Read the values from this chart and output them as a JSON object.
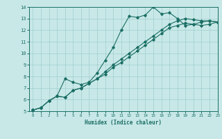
{
  "xlabel": "Humidex (Indice chaleur)",
  "ylabel": "",
  "bg_color": "#c8e8e8",
  "line_color": "#1a6e64",
  "grid_color": "#a0cccc",
  "xlim": [
    -0.5,
    23
  ],
  "ylim": [
    5,
    14
  ],
  "xticks": [
    0,
    1,
    2,
    3,
    4,
    5,
    6,
    7,
    8,
    9,
    10,
    11,
    12,
    13,
    14,
    15,
    16,
    17,
    18,
    19,
    20,
    21,
    22,
    23
  ],
  "yticks": [
    5,
    6,
    7,
    8,
    9,
    10,
    11,
    12,
    13,
    14
  ],
  "series": [
    {
      "x": [
        0,
        1,
        2,
        3,
        4,
        5,
        6,
        7,
        8,
        9,
        10,
        11,
        12,
        13,
        14,
        15,
        16,
        17,
        18,
        19,
        20,
        21,
        22,
        23
      ],
      "y": [
        5.1,
        5.3,
        5.9,
        6.3,
        7.8,
        7.5,
        7.3,
        7.5,
        8.3,
        9.4,
        10.5,
        12.0,
        13.2,
        13.1,
        13.3,
        14.0,
        13.4,
        13.5,
        13.0,
        12.4,
        12.5,
        12.7,
        12.8,
        12.7
      ]
    },
    {
      "x": [
        0,
        1,
        2,
        3,
        4,
        5,
        6,
        7,
        8,
        9,
        10,
        11,
        12,
        13,
        14,
        15,
        16,
        17,
        18,
        19,
        20,
        21,
        22,
        23
      ],
      "y": [
        5.1,
        5.3,
        5.9,
        6.3,
        6.2,
        6.8,
        7.0,
        7.4,
        7.8,
        8.4,
        9.0,
        9.5,
        10.0,
        10.5,
        11.0,
        11.5,
        12.0,
        12.5,
        12.8,
        13.0,
        12.9,
        12.8,
        12.8,
        12.7
      ]
    },
    {
      "x": [
        0,
        1,
        2,
        3,
        4,
        5,
        6,
        7,
        8,
        9,
        10,
        11,
        12,
        13,
        14,
        15,
        16,
        17,
        18,
        19,
        20,
        21,
        22,
        23
      ],
      "y": [
        5.1,
        5.3,
        5.9,
        6.3,
        6.2,
        6.8,
        7.0,
        7.4,
        7.8,
        8.2,
        8.8,
        9.2,
        9.7,
        10.2,
        10.7,
        11.2,
        11.7,
        12.2,
        12.4,
        12.6,
        12.5,
        12.4,
        12.5,
        12.7
      ]
    }
  ]
}
